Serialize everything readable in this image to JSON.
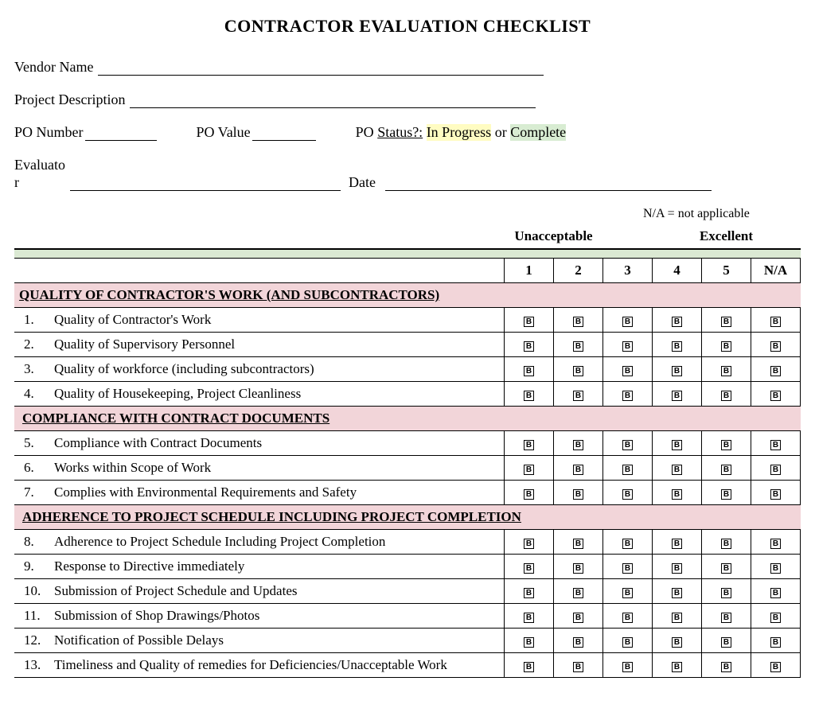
{
  "title": "CONTRACTOR EVALUATION CHECKLIST",
  "fields": {
    "vendor_name": "Vendor Name",
    "project_description": "Project Description",
    "po_number": "PO Number",
    "po_value": "PO Value",
    "po_prefix": "PO",
    "po_status_label": "Status?:",
    "po_status_opt1": "In Progress",
    "po_status_or": "or",
    "po_status_opt2": "Complete",
    "evaluator": "Evaluato\nr",
    "date": "Date"
  },
  "na_note": "N/A = not applicable",
  "scale": {
    "left": "Unacceptable",
    "right": "Excellent"
  },
  "columns": [
    "1",
    "2",
    "3",
    "4",
    "5",
    "N/A"
  ],
  "colors": {
    "section_bg": "#f2d5d9",
    "green_bg": "#dbe9d3",
    "hl_yellow": "#fffcc2",
    "hl_green": "#d8ecd2"
  },
  "sections": [
    {
      "title": "QUALITY OF CONTRACTOR'S WORK (AND SUBCONTRACTORS)",
      "indent": true,
      "items": [
        {
          "num": "1.",
          "label": "Quality of Contractor's Work"
        },
        {
          "num": "2.",
          "label": "Quality of Supervisory Personnel"
        },
        {
          "num": "3.",
          "label": "Quality of workforce (including subcontractors)"
        },
        {
          "num": "4.",
          "label": "Quality of Housekeeping, Project Cleanliness"
        }
      ]
    },
    {
      "title": "COMPLIANCE WITH CONTRACT DOCUMENTS",
      "indent": false,
      "items": [
        {
          "num": "5.",
          "label": "Compliance with Contract Documents"
        },
        {
          "num": "6.",
          "label": "Works within Scope of Work"
        },
        {
          "num": "7.",
          "label": "Complies with Environmental Requirements and Safety"
        }
      ]
    },
    {
      "title": "ADHERENCE TO PROJECT SCHEDULE INCLUDING PROJECT COMPLETION",
      "indent": false,
      "items": [
        {
          "num": "8.",
          "label": "Adherence to Project Schedule Including Project Completion"
        },
        {
          "num": "9.",
          "label": "Response to Directive immediately"
        },
        {
          "num": "10.",
          "label": "Submission of Project Schedule and Updates"
        },
        {
          "num": "11.",
          "label": "Submission of Shop Drawings/Photos"
        },
        {
          "num": "12.",
          "label": "Notification of Possible Delays"
        },
        {
          "num": "13.",
          "label": "Timeliness and Quality of remedies for Deficiencies/Unacceptable Work"
        }
      ]
    }
  ]
}
